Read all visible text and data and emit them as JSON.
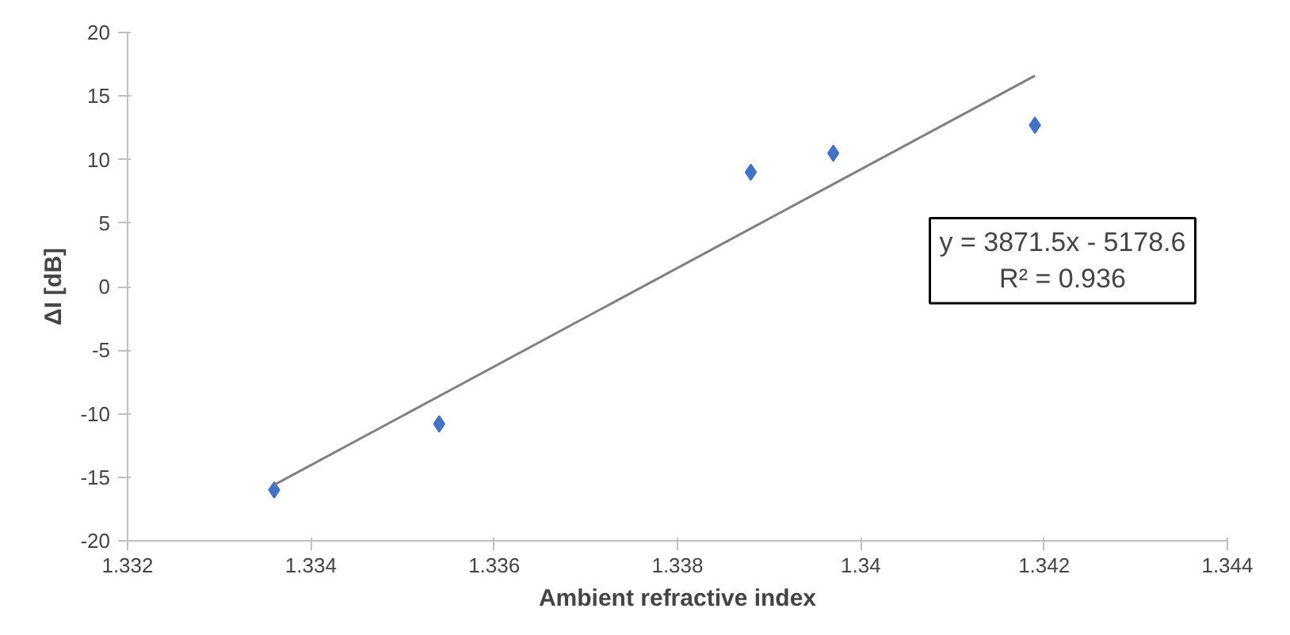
{
  "chart_data": {
    "type": "scatter",
    "xlabel": "Ambient refractive index",
    "ylabel": "ΔI [dB]",
    "xlim": [
      1.332,
      1.344
    ],
    "xticks": [
      1.332,
      1.334,
      1.336,
      1.338,
      {
        "value": 1.34,
        "label": "1.34"
      },
      1.342,
      1.344
    ],
    "ylim": [
      -20,
      20
    ],
    "yticks": [
      -20,
      -15,
      -10,
      -5,
      0,
      5,
      10,
      15,
      20
    ],
    "grid": false,
    "marker": "diamond",
    "series": [
      {
        "color": "#4472c4",
        "x": [
          1.3336,
          1.3354,
          1.3388,
          1.3397,
          1.3419
        ],
        "values": [
          -16,
          -10.8,
          9,
          10.5,
          12.7
        ]
      },
      {
        "type": "line",
        "color": "#808080",
        "marker": "none",
        "x": [
          1.3336,
          1.3419
        ],
        "values": [
          -15.6,
          16.6
        ]
      }
    ],
    "annotations": [
      "y = 3871.5x - 5178.6",
      "R² = 0.936"
    ]
  }
}
